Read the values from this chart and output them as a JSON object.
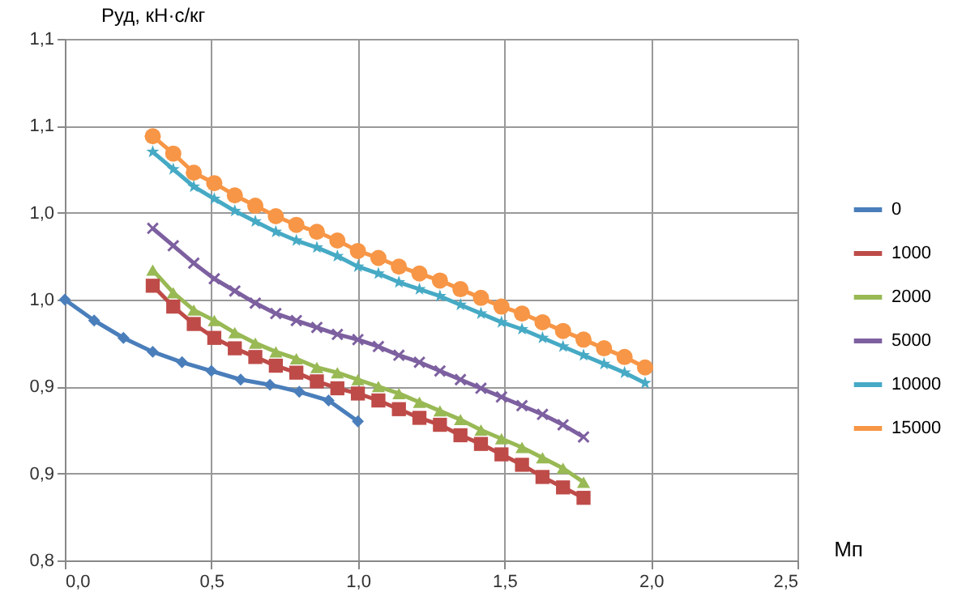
{
  "chart_data": {
    "type": "line",
    "ylabel": "Руд, кН·с/кг",
    "xlabel": "Мп",
    "xlim": [
      0,
      2.5
    ],
    "xticks": [
      {
        "value": 0,
        "label": "0,0"
      },
      {
        "value": 0.5,
        "label": "0,5"
      },
      {
        "value": 1,
        "label": "1,0"
      },
      {
        "value": 1.5,
        "label": "1,5"
      },
      {
        "value": 2,
        "label": "2,0"
      },
      {
        "value": 2.5,
        "label": "2,5"
      }
    ],
    "ylim": [
      0.8,
      1.1
    ],
    "yticks": [
      {
        "value": 0.8,
        "label": "0,8"
      },
      {
        "value": 0.85,
        "label": "0,9"
      },
      {
        "value": 0.9,
        "label": "0,9"
      },
      {
        "value": 0.95,
        "label": "1,0"
      },
      {
        "value": 1.0,
        "label": "1,0"
      },
      {
        "value": 1.05,
        "label": "1,1"
      },
      {
        "value": 1.1,
        "label": "1,1"
      }
    ],
    "grid": true,
    "legend": "right",
    "line_style": "solid",
    "series": [
      {
        "name": "0",
        "color": "#4a7ebb",
        "marker": "diamond",
        "x": [
          0,
          0.1,
          0.2,
          0.3,
          0.4,
          0.5,
          0.6,
          0.7,
          0.8,
          0.9,
          1.0
        ],
        "values": [
          0.95,
          0.938,
          0.928,
          0.92,
          0.914,
          0.909,
          0.904,
          0.901,
          0.897,
          0.892,
          0.88
        ]
      },
      {
        "name": "1000",
        "color": "#be4b48",
        "marker": "square",
        "x": [
          0.3,
          0.37,
          0.44,
          0.51,
          0.58,
          0.65,
          0.72,
          0.79,
          0.86,
          0.93,
          1.0,
          1.07,
          1.14,
          1.21,
          1.28,
          1.35,
          1.42,
          1.49,
          1.56,
          1.63,
          1.7,
          1.77
        ],
        "values": [
          0.958,
          0.946,
          0.936,
          0.928,
          0.922,
          0.917,
          0.912,
          0.908,
          0.903,
          0.899,
          0.896,
          0.892,
          0.887,
          0.882,
          0.878,
          0.872,
          0.867,
          0.861,
          0.855,
          0.848,
          0.842,
          0.836
        ]
      },
      {
        "name": "2000",
        "color": "#98b954",
        "marker": "triangle",
        "x": [
          0.3,
          0.37,
          0.44,
          0.51,
          0.58,
          0.65,
          0.72,
          0.79,
          0.86,
          0.93,
          1.0,
          1.07,
          1.14,
          1.21,
          1.28,
          1.35,
          1.42,
          1.49,
          1.56,
          1.63,
          1.7,
          1.77
        ],
        "values": [
          0.967,
          0.954,
          0.944,
          0.938,
          0.931,
          0.925,
          0.92,
          0.916,
          0.911,
          0.908,
          0.904,
          0.9,
          0.896,
          0.891,
          0.886,
          0.881,
          0.875,
          0.87,
          0.865,
          0.859,
          0.853,
          0.845
        ]
      },
      {
        "name": "5000",
        "color": "#7d60a0",
        "marker": "cross",
        "x": [
          0.3,
          0.37,
          0.44,
          0.51,
          0.58,
          0.65,
          0.72,
          0.79,
          0.86,
          0.93,
          1.0,
          1.07,
          1.14,
          1.21,
          1.28,
          1.35,
          1.42,
          1.49,
          1.56,
          1.63,
          1.7,
          1.77
        ],
        "values": [
          0.991,
          0.981,
          0.971,
          0.962,
          0.955,
          0.948,
          0.942,
          0.938,
          0.934,
          0.93,
          0.927,
          0.923,
          0.918,
          0.914,
          0.909,
          0.904,
          0.899,
          0.894,
          0.889,
          0.884,
          0.878,
          0.871
        ]
      },
      {
        "name": "10000",
        "color": "#46aac5",
        "marker": "star",
        "x": [
          0.3,
          0.37,
          0.44,
          0.51,
          0.58,
          0.65,
          0.72,
          0.79,
          0.86,
          0.93,
          1.0,
          1.07,
          1.14,
          1.21,
          1.28,
          1.35,
          1.42,
          1.49,
          1.56,
          1.63,
          1.7,
          1.77,
          1.84,
          1.91,
          1.98
        ],
        "values": [
          1.035,
          1.025,
          1.015,
          1.008,
          1.001,
          0.995,
          0.989,
          0.984,
          0.98,
          0.975,
          0.969,
          0.965,
          0.96,
          0.956,
          0.952,
          0.947,
          0.942,
          0.937,
          0.933,
          0.928,
          0.923,
          0.918,
          0.913,
          0.908,
          0.902
        ]
      },
      {
        "name": "15000",
        "color": "#f79646",
        "marker": "circle",
        "x": [
          0.3,
          0.37,
          0.44,
          0.51,
          0.58,
          0.65,
          0.72,
          0.79,
          0.86,
          0.93,
          1.0,
          1.07,
          1.14,
          1.21,
          1.28,
          1.35,
          1.42,
          1.49,
          1.56,
          1.63,
          1.7,
          1.77,
          1.84,
          1.91,
          1.98
        ],
        "values": [
          1.044,
          1.034,
          1.023,
          1.017,
          1.01,
          1.004,
          0.998,
          0.993,
          0.989,
          0.984,
          0.978,
          0.974,
          0.969,
          0.965,
          0.961,
          0.956,
          0.951,
          0.946,
          0.942,
          0.937,
          0.932,
          0.927,
          0.922,
          0.917,
          0.911
        ]
      }
    ]
  }
}
